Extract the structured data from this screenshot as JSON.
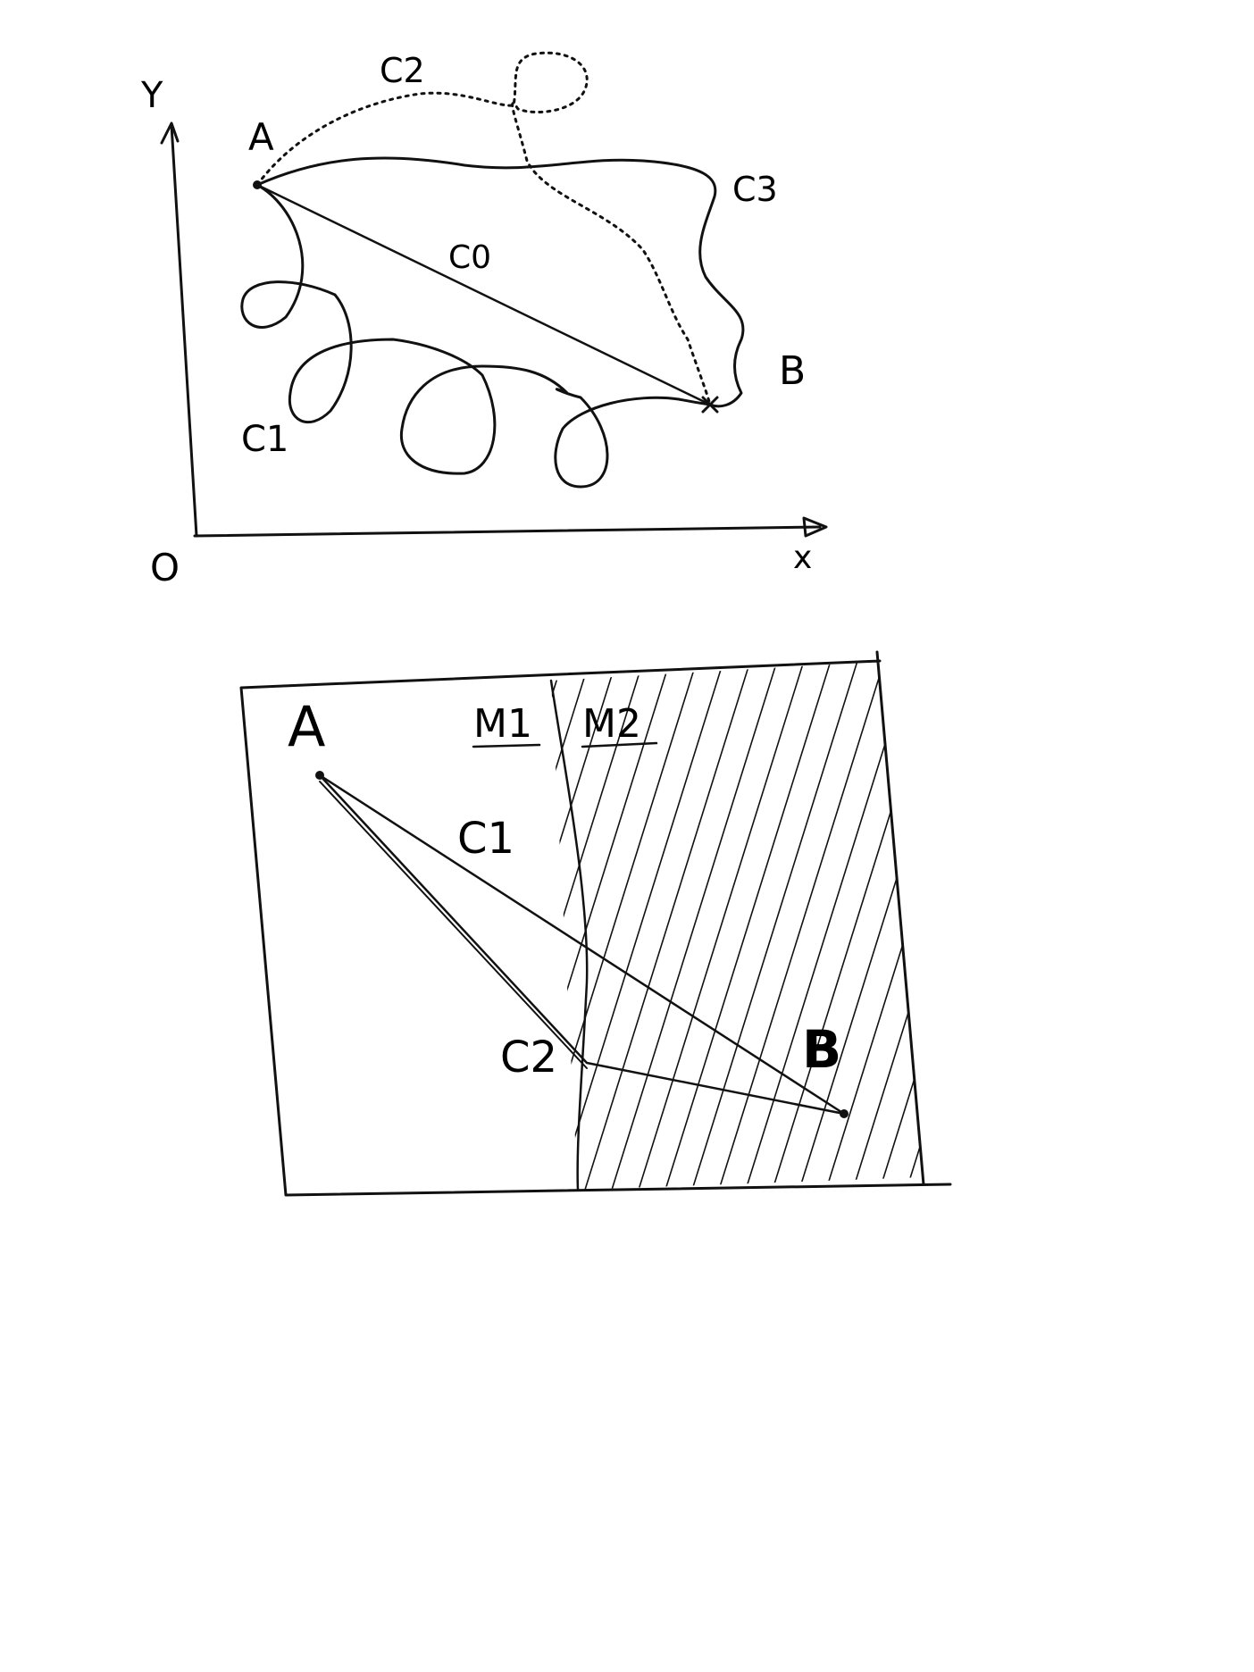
{
  "diagram1": {
    "axis_y_label": "Y",
    "axis_x_label": "x",
    "origin_label": "O",
    "point_a_label": "A",
    "point_b_label": "B",
    "curve_c0_label": "C0",
    "curve_c1_label": "C1",
    "curve_c2_label": "C2",
    "curve_c3_label": "C3"
  },
  "diagram2": {
    "point_a_label": "A",
    "point_b_label": "B",
    "medium1_label": "M1",
    "medium2_label": "M2",
    "path_c1_label": "C1",
    "path_c2_label": "C2"
  },
  "colors": {
    "ink": "#111111",
    "background": "#ffffff"
  }
}
